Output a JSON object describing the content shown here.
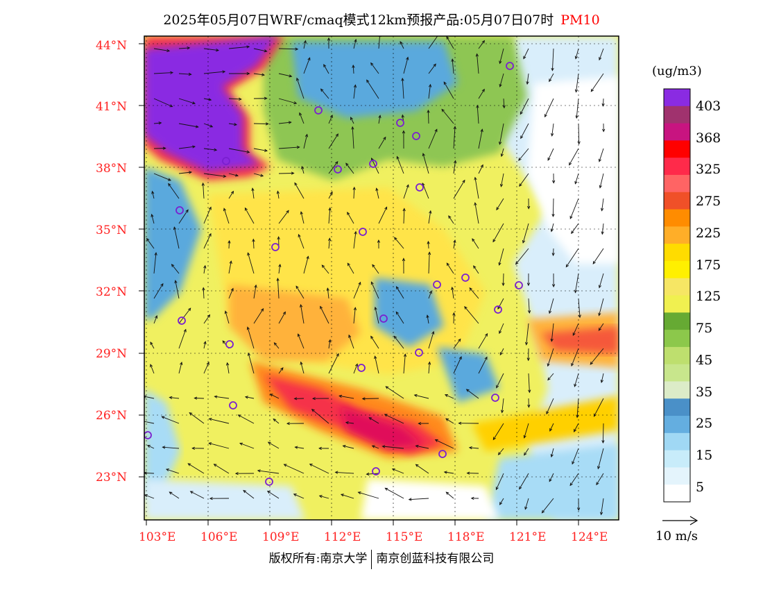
{
  "title": {
    "main": "2025年05月07日WRF/cmaq模式12km预报产品:05月07日07时",
    "variable": "PM10"
  },
  "map": {
    "lat_labels": [
      "44°N",
      "41°N",
      "38°N",
      "35°N",
      "32°N",
      "29°N",
      "26°N",
      "23°N"
    ],
    "lon_labels": [
      "103°E",
      "106°E",
      "109°E",
      "112°E",
      "115°E",
      "118°E",
      "121°E",
      "124°E"
    ],
    "colors": {
      "clean": "#ffffff",
      "very_low": "#d9eefb",
      "low": "#a8dcf6",
      "low_mid": "#5aa9dd",
      "mid_low": "#d6e8b8",
      "green": "#8ec652",
      "dark_green": "#66aa33",
      "yellow_green": "#f0f060",
      "yellow": "#ffe44a",
      "gold": "#ffd000",
      "orange_light": "#ffb23a",
      "orange": "#ff8a1a",
      "red_orange": "#f5583a",
      "red": "#f5304a",
      "deep_red": "#e0105a",
      "purple": "#8a2be2"
    }
  },
  "colorbar": {
    "unit": "(ug/m3)",
    "labels": [
      "403",
      "368",
      "325",
      "275",
      "225",
      "175",
      "125",
      "75",
      "45",
      "35",
      "25",
      "15",
      "5"
    ],
    "colors": [
      "#8a2be2",
      "#a0326e",
      "#c81480",
      "#ff0000",
      "#ff2a4a",
      "#ff6464",
      "#f05028",
      "#ff8c00",
      "#ffae28",
      "#ffdc00",
      "#fff000",
      "#f6e664",
      "#f0f050",
      "#66aa33",
      "#8cc84b",
      "#bedf6e",
      "#c8e68c",
      "#dcecc8",
      "#4a90c8",
      "#64aee0",
      "#a0d8f4",
      "#c8ecfa",
      "#e4f4fc",
      "#ffffff"
    ]
  },
  "wind_reference": {
    "label": "10 m/s"
  },
  "footer": {
    "copyright": "版权所有:南京大学",
    "company": "南京创蓝科技有限公司"
  }
}
